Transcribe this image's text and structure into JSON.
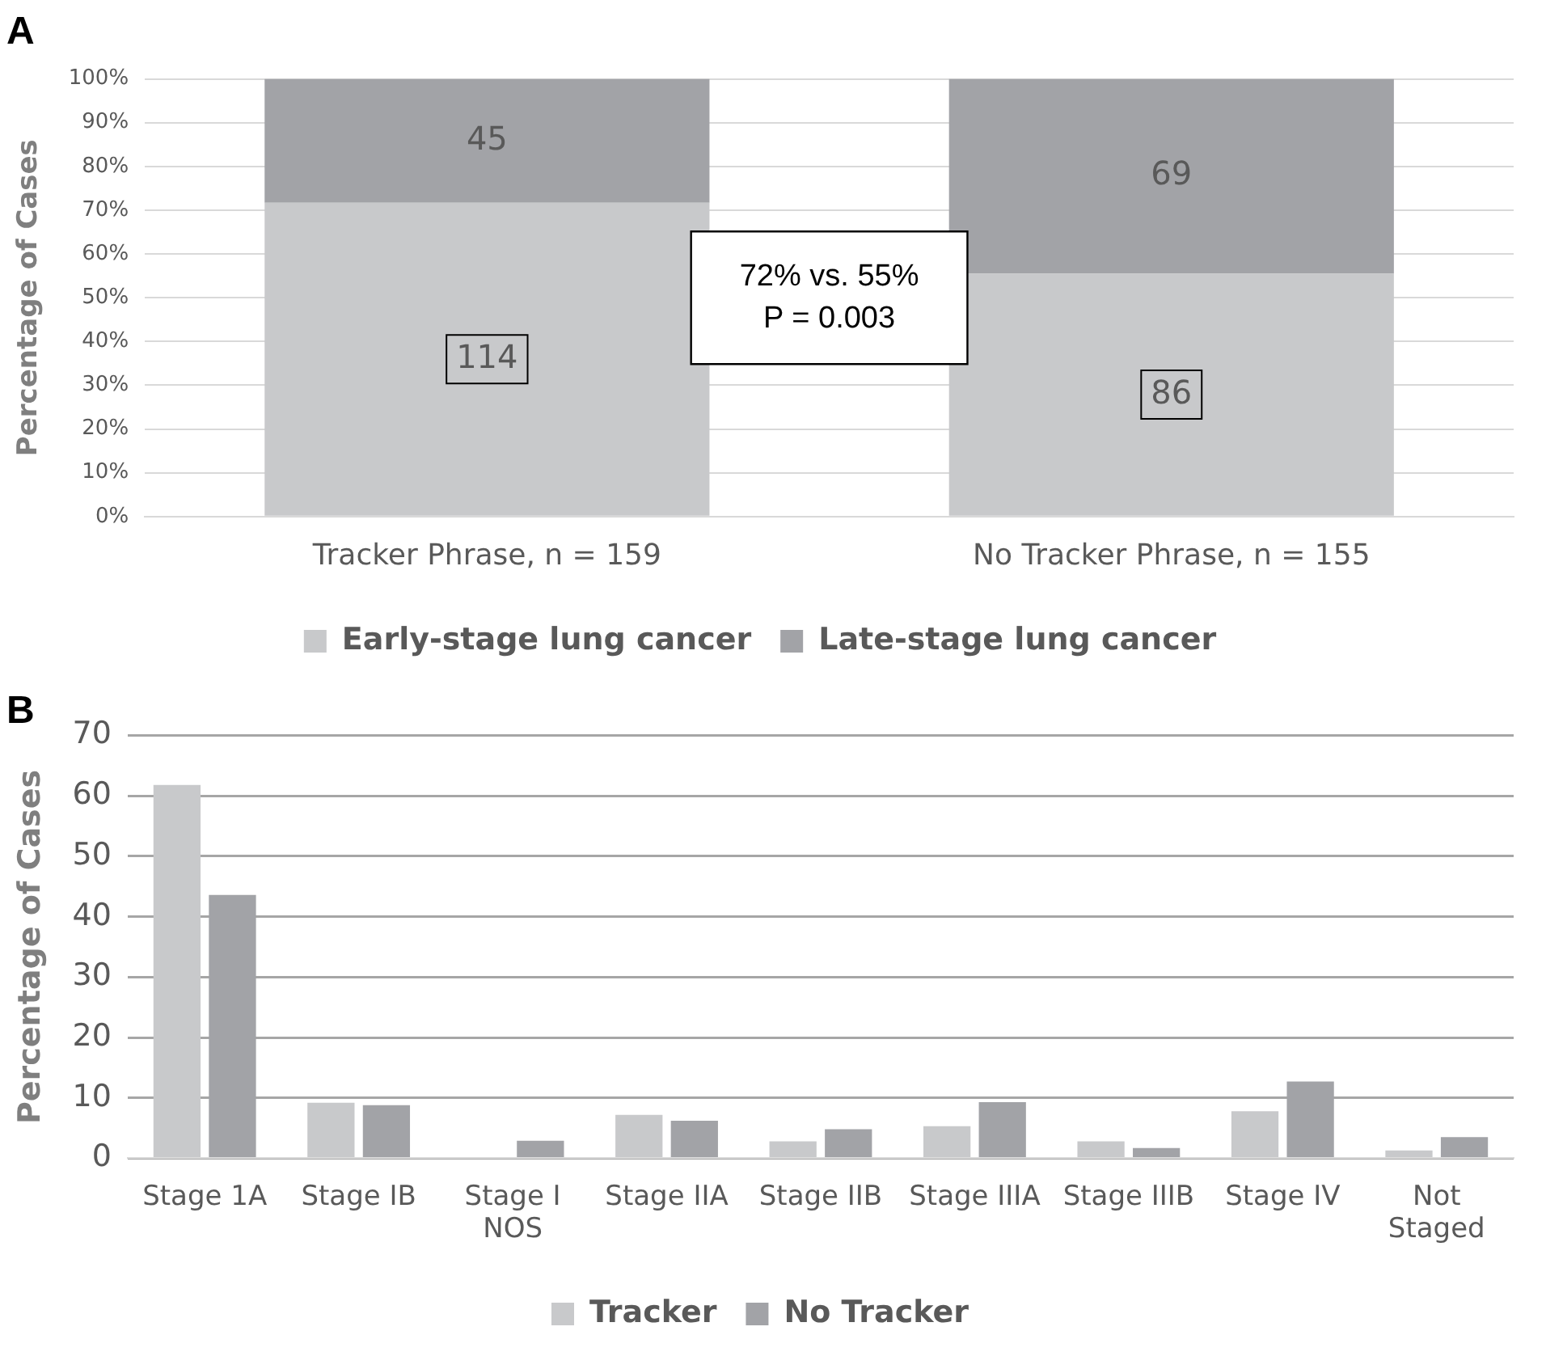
{
  "chart_data": [
    {
      "type": "bar",
      "title": "A",
      "ylabel": "Percentage of Cases",
      "categories": [
        "Tracker Phrase, n = 159",
        "No Tracker Phrase, n = 155"
      ],
      "stacked": true,
      "series": [
        {
          "name": "Early-stage lung cancer",
          "color": "#c8c9cb",
          "values": [
            71.7,
            55.5
          ]
        },
        {
          "name": "Late-stage lung cancer",
          "color": "#a2a3a7",
          "values": [
            28.3,
            44.5
          ]
        }
      ],
      "ylim": [
        0,
        100
      ],
      "yticks": [
        {
          "value": 0,
          "label": "0%"
        },
        {
          "value": 10,
          "label": "10%"
        },
        {
          "value": 20,
          "label": "20%"
        },
        {
          "value": 30,
          "label": "30%"
        },
        {
          "value": 40,
          "label": "40%"
        },
        {
          "value": 50,
          "label": "50%"
        },
        {
          "value": 60,
          "label": "60%"
        },
        {
          "value": 70,
          "label": "70%"
        },
        {
          "value": 80,
          "label": "80%"
        },
        {
          "value": 90,
          "label": "90%"
        },
        {
          "value": 100,
          "label": "100%"
        }
      ],
      "grid": "y",
      "legend": "bottom",
      "annotations": [
        "72% vs. 55%\nP = 0.003",
        "114",
        "86",
        "45",
        "69"
      ]
    },
    {
      "type": "bar",
      "title": "B",
      "ylabel": "Percentage of Cases",
      "categories": [
        "Stage 1A",
        "Stage IB",
        "Stage I\nNOS",
        "Stage IIA",
        "Stage IIB",
        "Stage IIIA",
        "Stage IIIB",
        "Stage IV",
        "Not\nStaged"
      ],
      "series": [
        {
          "name": "Tracker",
          "color": "#c8c9cb",
          "values": [
            61.8,
            9.2,
            0,
            7.2,
            2.8,
            5.3,
            2.8,
            7.8,
            1.3
          ]
        },
        {
          "name": "No Tracker",
          "color": "#a2a3a7",
          "values": [
            43.6,
            8.8,
            2.9,
            6.2,
            4.8,
            9.3,
            1.7,
            12.7,
            3.5
          ]
        }
      ],
      "ylim": [
        0,
        70
      ],
      "yticks": [
        0,
        10,
        20,
        30,
        40,
        50,
        60,
        70
      ],
      "grid": "y",
      "legend": "bottom"
    }
  ]
}
